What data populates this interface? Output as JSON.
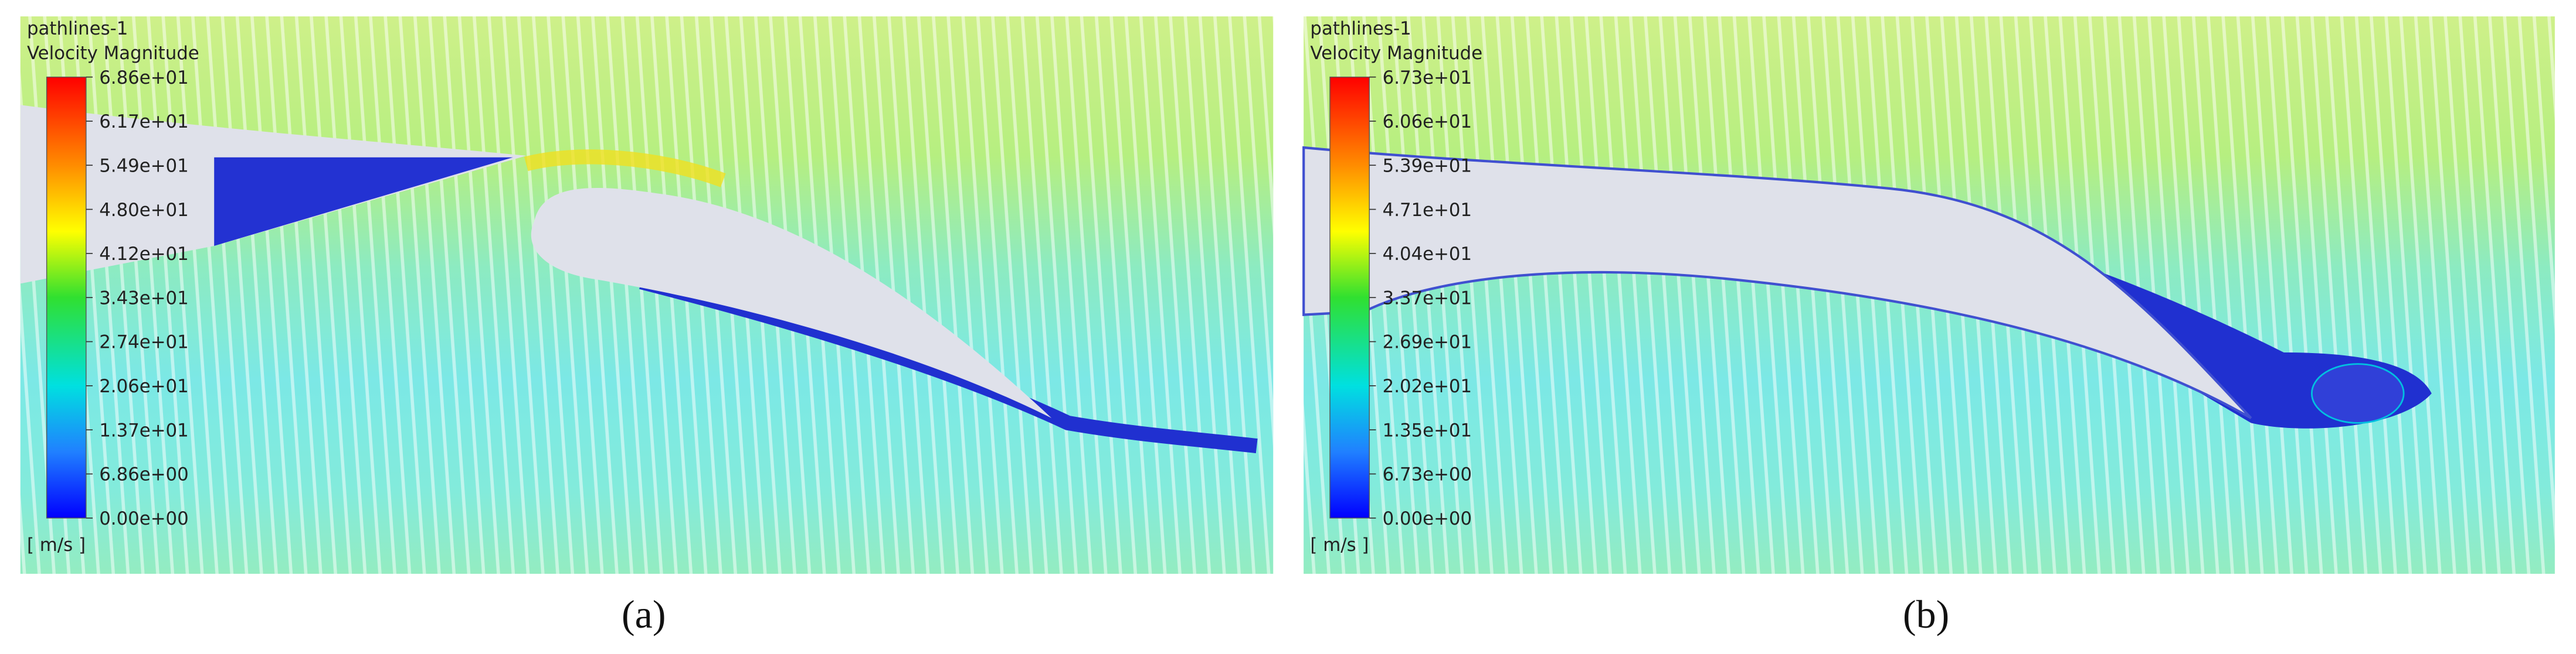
{
  "panels": [
    {
      "title": "pathlines-1",
      "quantity": "Velocity Magnitude",
      "ticks": [
        "6.86e+01",
        "6.17e+01",
        "5.49e+01",
        "4.80e+01",
        "4.12e+01",
        "3.43e+01",
        "2.74e+01",
        "2.06e+01",
        "1.37e+01",
        "6.86e+00",
        "0.00e+00"
      ],
      "unit": "[ m/s ]",
      "caption": "(a)"
    },
    {
      "title": "pathlines-1",
      "quantity": "Velocity Magnitude",
      "ticks": [
        "6.73e+01",
        "6.06e+01",
        "5.39e+01",
        "4.71e+01",
        "4.04e+01",
        "3.37e+01",
        "2.69e+01",
        "2.02e+01",
        "1.35e+01",
        "6.73e+00",
        "0.00e+00"
      ],
      "unit": "[ m/s ]",
      "caption": "(b)"
    }
  ]
}
